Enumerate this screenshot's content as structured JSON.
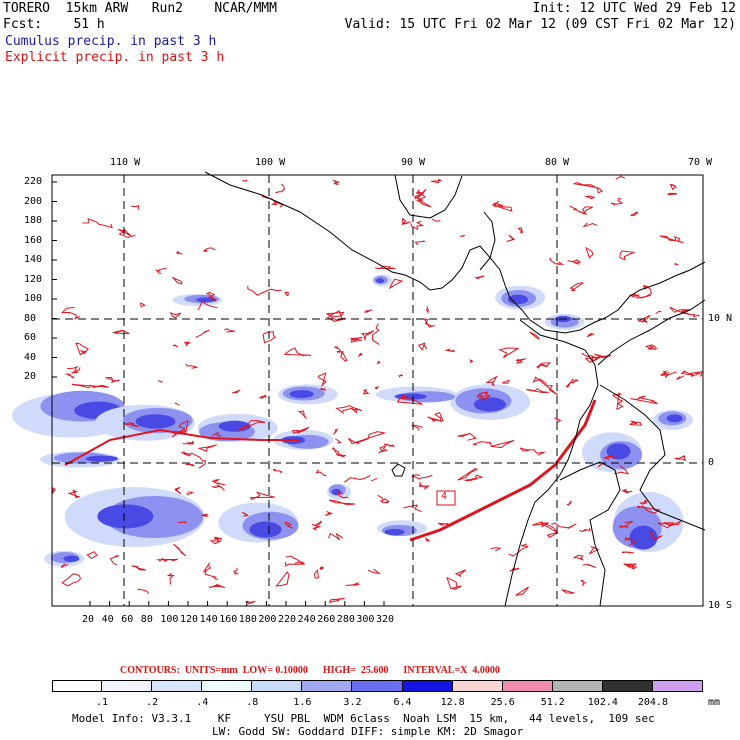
{
  "header": {
    "line1_left": "TORERO  15km ARW   Run2    NCAR/MMM",
    "line1_right": "Init: 12 UTC Wed 29 Feb 12",
    "line2_left": "Fcst:    51 h",
    "line2_right": "Valid: 15 UTC Fri 02 Mar 12 (09 CST Fri 02 Mar 12)",
    "cumulus": "Cumulus precip. in past 3 h",
    "explicit": "Explicit precip. in past 3 h"
  },
  "map": {
    "top_lon_labels": [
      "110 W",
      "100 W",
      "90 W",
      "80 W",
      "70 W"
    ],
    "right_lat_labels": [
      "10 N",
      "0",
      "10 S"
    ],
    "y_ticks": [
      "220",
      "200",
      "180",
      "160",
      "140",
      "120",
      "100",
      "80",
      "60",
      "40",
      "20"
    ],
    "x_ticks": [
      "20",
      "40",
      "60",
      "80",
      "100",
      "120",
      "140",
      "160",
      "180",
      "200",
      "220",
      "240",
      "260",
      "280",
      "300",
      "320"
    ],
    "marker_label": "4",
    "contour_color": "#e0141e",
    "shade_color": "#4040e8"
  },
  "contours": {
    "title": "CONTOURS:  UNITS=mm  LOW= 0.10000      HIGH=  25.600      INTERVAL=X  4.0000"
  },
  "colorbar": {
    "labels": [
      ".1",
      ".2",
      ".4",
      ".8",
      "1.6",
      "3.2",
      "6.4",
      "12.8",
      "25.6",
      "51.2",
      "102.4",
      "204.8"
    ],
    "unit": "mm",
    "colors": [
      "#ffffff",
      "#f0f4ff",
      "#d6e6ff",
      "#eefcff",
      "#c8dcfa",
      "#a0a8f0",
      "#6a6ef0",
      "#1414e0",
      "#f8d4d4",
      "#f08cb0",
      "#b4b4b4",
      "#303030",
      "#d0a0f0"
    ]
  },
  "footer": {
    "line1": "Model Info: V3.3.1    KF     YSU PBL  WDM 6class  Noah LSM  15 km,   44 levels,  109 sec",
    "line2": "LW: Godd SW: Goddard DIFF: simple KM: 2D Smagor"
  }
}
